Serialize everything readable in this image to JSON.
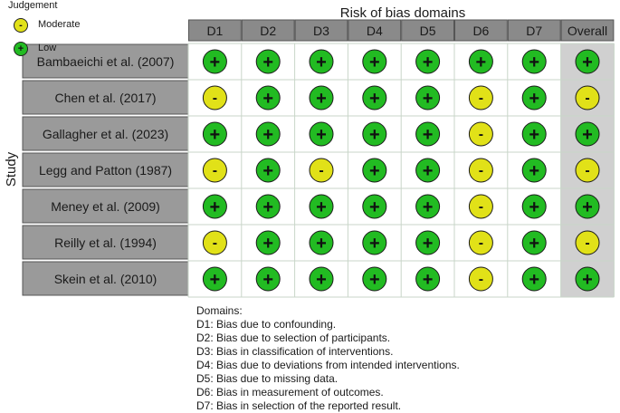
{
  "chart_data": {
    "type": "table",
    "title": "Risk of bias domains",
    "ylabel": "Study",
    "columns": [
      "D1",
      "D2",
      "D3",
      "D4",
      "D5",
      "D6",
      "D7",
      "Overall"
    ],
    "studies": [
      "Bambaeichi et al. (2007)",
      "Chen et al. (2017)",
      "Gallagher et al. (2023)",
      "Legg and Patton (1987)",
      "Meney et al. (2009)",
      "Reilly et al. (1994)",
      "Skein et al. (2010)"
    ],
    "ratings": [
      [
        "Low",
        "Low",
        "Low",
        "Low",
        "Low",
        "Low",
        "Low",
        "Low"
      ],
      [
        "Moderate",
        "Low",
        "Low",
        "Low",
        "Low",
        "Moderate",
        "Low",
        "Moderate"
      ],
      [
        "Low",
        "Low",
        "Low",
        "Low",
        "Low",
        "Moderate",
        "Low",
        "Low"
      ],
      [
        "Moderate",
        "Low",
        "Moderate",
        "Low",
        "Low",
        "Moderate",
        "Low",
        "Moderate"
      ],
      [
        "Low",
        "Low",
        "Low",
        "Low",
        "Low",
        "Moderate",
        "Low",
        "Low"
      ],
      [
        "Moderate",
        "Low",
        "Low",
        "Low",
        "Low",
        "Moderate",
        "Low",
        "Moderate"
      ],
      [
        "Low",
        "Low",
        "Low",
        "Low",
        "Low",
        "Moderate",
        "Low",
        "Low"
      ]
    ],
    "symbols": {
      "Low": "+",
      "Moderate": "-"
    },
    "colors": {
      "Low": "#22bb22",
      "Moderate": "#e1e118",
      "header_bg": "#8a8a8a",
      "study_bg": "#9a9a9a",
      "overall_bg": "#d0d0d0",
      "grid_line": "#c9d6c9"
    },
    "legend_placement": "bottom-right"
  },
  "legend": {
    "domains_title": "Domains:",
    "domains": [
      "D1: Bias due to confounding.",
      "D2: Bias due to selection of participants.",
      "D3: Bias in classification of interventions.",
      "D4: Bias due to deviations from intended interventions.",
      "D5: Bias due to missing data.",
      "D6: Bias in measurement of outcomes.",
      "D7: Bias in selection of the reported result."
    ],
    "judgement_title": "Judgement",
    "judgements": [
      {
        "label": "Moderate",
        "symbol": "-",
        "color": "#e1e118"
      },
      {
        "label": "Low",
        "symbol": "+",
        "color": "#22bb22"
      }
    ]
  }
}
